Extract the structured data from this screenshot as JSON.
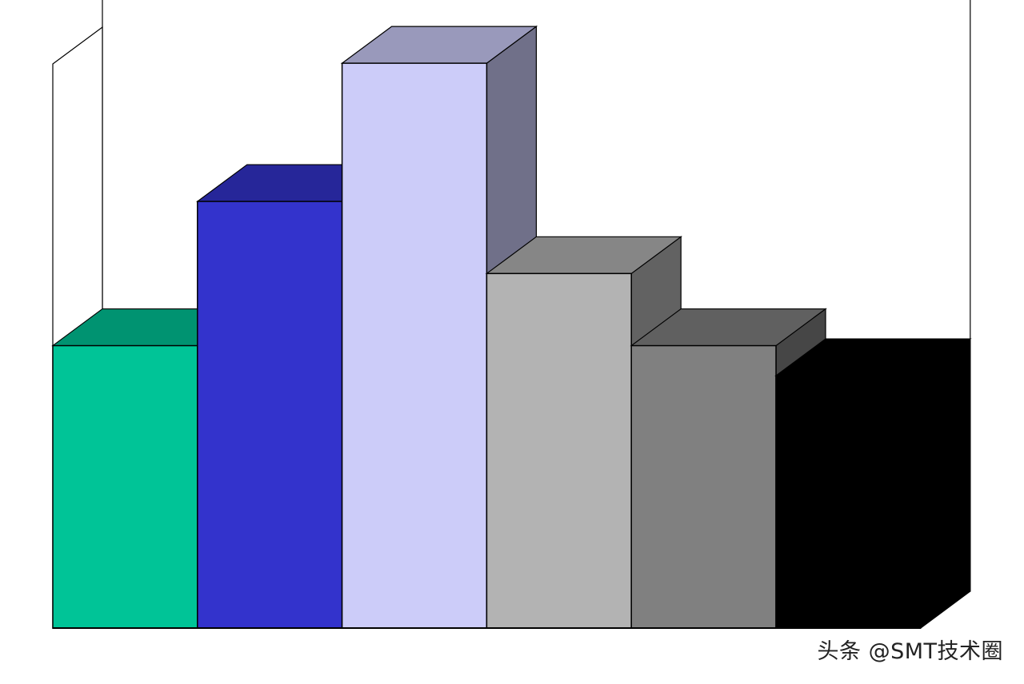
{
  "watermark": "头条 @SMT技术圈",
  "chart_data": {
    "type": "bar",
    "style": "3d",
    "title": "",
    "xlabel": "",
    "ylabel": "",
    "ylim": [
      0,
      100
    ],
    "grid": false,
    "legend": "none",
    "categories": [
      "",
      "",
      "",
      "",
      "",
      ""
    ],
    "values": [
      47,
      71,
      94,
      59,
      47,
      42
    ],
    "colors": [
      "#00c497",
      "#3333cc",
      "#ccccf9",
      "#b3b3b3",
      "#808080",
      "#000000"
    ]
  }
}
